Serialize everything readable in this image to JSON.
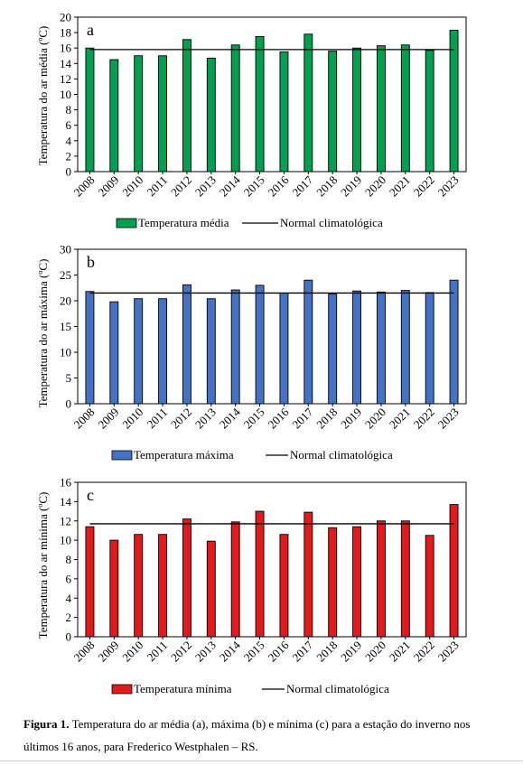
{
  "chart_data": [
    {
      "type": "bar",
      "panel_label": "a",
      "categories": [
        "2008",
        "2009",
        "2010",
        "2011",
        "2012",
        "2013",
        "2014",
        "2015",
        "2016",
        "2017",
        "2018",
        "2019",
        "2020",
        "2021",
        "2022",
        "2023"
      ],
      "series": [
        {
          "name": "Temperatura média",
          "color": "#00a050",
          "values": [
            16.0,
            14.5,
            15.0,
            15.0,
            17.1,
            14.7,
            16.4,
            17.5,
            15.5,
            17.8,
            15.6,
            16.0,
            16.3,
            16.4,
            15.7,
            18.3
          ]
        }
      ],
      "reference_line": {
        "name": "Normal climatológica",
        "value": 15.8
      },
      "ylabel": "Temperatura do ar média (ºC)",
      "ylim": [
        0,
        20
      ],
      "yticks": [
        0,
        2,
        4,
        6,
        8,
        10,
        12,
        14,
        16,
        18,
        20
      ],
      "grid": false,
      "legend": "bottom"
    },
    {
      "type": "bar",
      "panel_label": "b",
      "categories": [
        "2008",
        "2009",
        "2010",
        "2011",
        "2012",
        "2013",
        "2014",
        "2015",
        "2016",
        "2017",
        "2018",
        "2019",
        "2020",
        "2021",
        "2022",
        "2023"
      ],
      "series": [
        {
          "name": "Temperatura máxima",
          "color": "#4472c4",
          "values": [
            21.8,
            19.8,
            20.4,
            20.4,
            23.1,
            20.4,
            22.1,
            23.0,
            21.5,
            24.0,
            21.3,
            21.9,
            21.7,
            22.0,
            21.6,
            24.0
          ]
        }
      ],
      "reference_line": {
        "name": "Normal climatológica",
        "value": 21.5
      },
      "ylabel": "Temperatura do ar máxima (ºC)",
      "ylim": [
        0,
        30
      ],
      "yticks": [
        0,
        5,
        10,
        15,
        20,
        25,
        30
      ],
      "grid": false,
      "legend": "bottom"
    },
    {
      "type": "bar",
      "panel_label": "c",
      "categories": [
        "2008",
        "2009",
        "2010",
        "2011",
        "2012",
        "2013",
        "2014",
        "2015",
        "2016",
        "2017",
        "2018",
        "2019",
        "2020",
        "2021",
        "2022",
        "2023"
      ],
      "series": [
        {
          "name": "Temperatura mínima",
          "color": "#e31a1c",
          "values": [
            11.4,
            10.0,
            10.6,
            10.6,
            12.2,
            9.9,
            11.9,
            13.0,
            10.6,
            12.9,
            11.3,
            11.4,
            12.0,
            12.0,
            10.5,
            13.7
          ]
        }
      ],
      "reference_line": {
        "name": "Normal climatológica",
        "value": 11.7
      },
      "ylabel": "Temperatura do ar mínima (ºC)",
      "ylim": [
        0,
        16
      ],
      "yticks": [
        0,
        2,
        4,
        6,
        8,
        10,
        12,
        14,
        16
      ],
      "grid": false,
      "legend": "bottom"
    }
  ],
  "caption": {
    "label": "Figura 1.",
    "text": " Temperatura do ar média (a), máxima (b) e mínima (c) para a estação do inverno nos últimos 16 anos, para Frederico Westphalen – RS."
  }
}
